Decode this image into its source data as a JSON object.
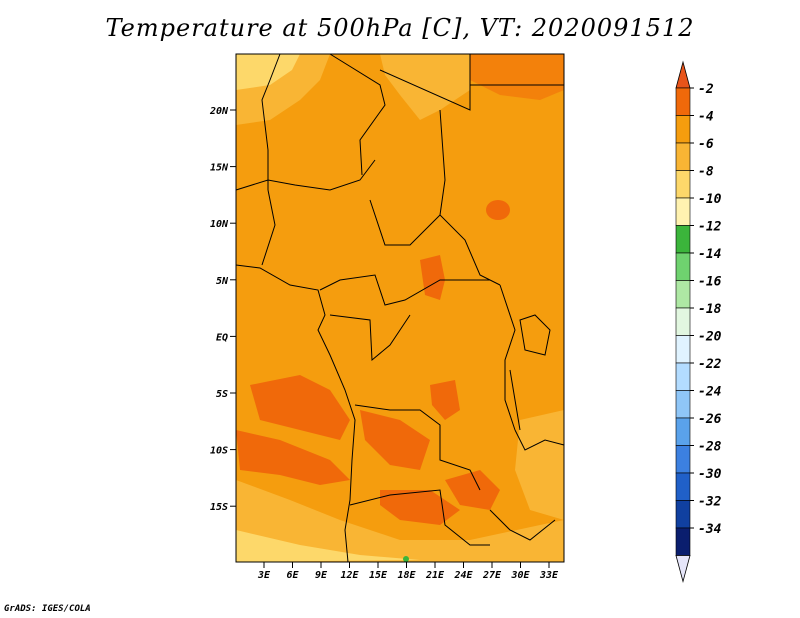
{
  "title": "Temperature at 500hPa [C], VT: 2020091512",
  "credit": "GrADS: IGES/COLA",
  "map": {
    "lat_ticks": [
      "20N",
      "15N",
      "10N",
      "5N",
      "EQ",
      "5S",
      "10S",
      "15S"
    ],
    "lon_ticks": [
      "3E",
      "6E",
      "9E",
      "12E",
      "15E",
      "18E",
      "21E",
      "24E",
      "27E",
      "30E",
      "33E"
    ]
  },
  "colorbar": {
    "labels": [
      "-2",
      "-4",
      "-6",
      "-8",
      "-10",
      "-12",
      "-14",
      "-16",
      "-18",
      "-20",
      "-22",
      "-24",
      "-26",
      "-28",
      "-30",
      "-32",
      "-34"
    ],
    "colors": [
      "#e8541a",
      "#f0690a",
      "#f59d0e",
      "#f9b534",
      "#fdd86a",
      "#fff2b0",
      "#3bb53b",
      "#6fd26f",
      "#aee8a4",
      "#e2f7e0",
      "#e0f3ff",
      "#b3dcff",
      "#8fc6f7",
      "#5aa2eb",
      "#3c80e0",
      "#2060c8",
      "#1040a0",
      "#0a1e6e",
      "#e6e6fa"
    ]
  }
}
